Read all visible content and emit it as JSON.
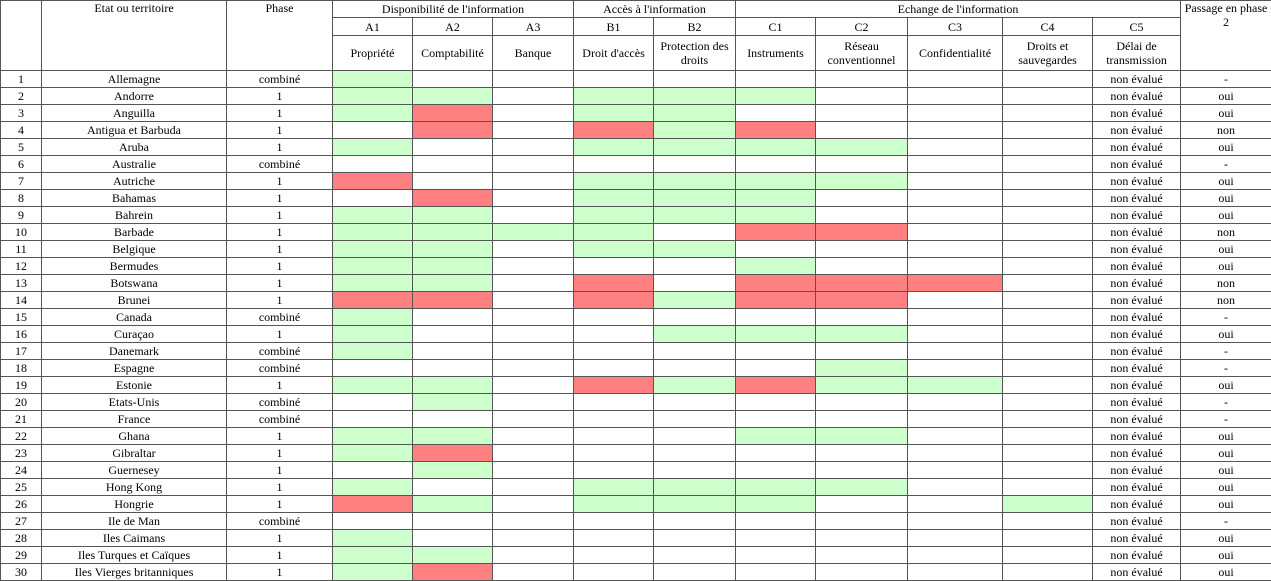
{
  "header": {
    "state": "Etat ou territoire",
    "phase": "Phase",
    "passage": "Passage en phase 2",
    "groups": [
      {
        "label": "Disponibilité de l'information",
        "span": 3
      },
      {
        "label": "Accès à l'information",
        "span": 2
      },
      {
        "label": "Echange de l'information",
        "span": 5
      }
    ],
    "columns": [
      {
        "code": "A1",
        "label": "Propriété"
      },
      {
        "code": "A2",
        "label": "Comptabilité"
      },
      {
        "code": "A3",
        "label": "Banque"
      },
      {
        "code": "B1",
        "label": "Droit d'accès"
      },
      {
        "code": "B2",
        "label": "Protection des droits"
      },
      {
        "code": "C1",
        "label": "Instruments"
      },
      {
        "code": "C2",
        "label": "Réseau conventionnel"
      },
      {
        "code": "C3",
        "label": "Confidentialité"
      },
      {
        "code": "C4",
        "label": "Droits et sauvegardes"
      },
      {
        "code": "C5",
        "label": "Délai de transmission"
      }
    ]
  },
  "table": {
    "rows": [
      {
        "n": 1,
        "name": "Allemagne",
        "phase": "combiné",
        "cells": [
          "#ccffcc",
          null,
          null,
          null,
          null,
          null,
          null,
          null,
          null
        ],
        "c5": "non évalué",
        "passage": "-"
      },
      {
        "n": 2,
        "name": "Andorre",
        "phase": "1",
        "cells": [
          "#ccffcc",
          "#ccffcc",
          null,
          "#ccffcc",
          "#ccffcc",
          "#ccffcc",
          null,
          null,
          null
        ],
        "c5": "non évalué",
        "passage": "oui"
      },
      {
        "n": 3,
        "name": "Anguilla",
        "phase": "1",
        "cells": [
          "#ccffcc",
          "#ff8080",
          null,
          "#ccffcc",
          "#ccffcc",
          null,
          null,
          null,
          null
        ],
        "c5": "non évalué",
        "passage": "oui"
      },
      {
        "n": 4,
        "name": "Antigua et Barbuda",
        "phase": "1",
        "cells": [
          null,
          "#ff8080",
          null,
          "#ff8080",
          "#ccffcc",
          "#ff8080",
          null,
          null,
          null
        ],
        "c5": "non évalué",
        "passage": "non"
      },
      {
        "n": 5,
        "name": "Aruba",
        "phase": "1",
        "cells": [
          "#ccffcc",
          null,
          null,
          "#ccffcc",
          "#ccffcc",
          "#ccffcc",
          "#ccffcc",
          null,
          null
        ],
        "c5": "non évalué",
        "passage": "oui"
      },
      {
        "n": 6,
        "name": "Australie",
        "phase": "combiné",
        "cells": [
          null,
          null,
          null,
          null,
          null,
          null,
          null,
          null,
          null
        ],
        "c5": "non évalué",
        "passage": "-"
      },
      {
        "n": 7,
        "name": "Autriche",
        "phase": "1",
        "cells": [
          "#ff8080",
          null,
          null,
          "#ccffcc",
          "#ccffcc",
          "#ccffcc",
          "#ccffcc",
          null,
          null
        ],
        "c5": "non évalué",
        "passage": "oui"
      },
      {
        "n": 8,
        "name": "Bahamas",
        "phase": "1",
        "cells": [
          null,
          "#ff8080",
          null,
          "#ccffcc",
          "#ccffcc",
          "#ccffcc",
          null,
          null,
          null
        ],
        "c5": "non évalué",
        "passage": "oui"
      },
      {
        "n": 9,
        "name": "Bahrein",
        "phase": "1",
        "cells": [
          "#ccffcc",
          "#ccffcc",
          null,
          "#ccffcc",
          "#ccffcc",
          "#ccffcc",
          null,
          null,
          null
        ],
        "c5": "non évalué",
        "passage": "oui"
      },
      {
        "n": 10,
        "name": "Barbade",
        "phase": "1",
        "cells": [
          "#ccffcc",
          "#ccffcc",
          "#ccffcc",
          "#ccffcc",
          null,
          "#ff8080",
          "#ff8080",
          null,
          null
        ],
        "c5": "non évalué",
        "passage": "non"
      },
      {
        "n": 11,
        "name": "Belgique",
        "phase": "1",
        "cells": [
          "#ccffcc",
          "#ccffcc",
          null,
          "#ccffcc",
          "#ccffcc",
          null,
          null,
          null,
          null
        ],
        "c5": "non évalué",
        "passage": "oui"
      },
      {
        "n": 12,
        "name": "Bermudes",
        "phase": "1",
        "cells": [
          "#ccffcc",
          "#ccffcc",
          null,
          null,
          null,
          "#ccffcc",
          null,
          null,
          null
        ],
        "c5": "non évalué",
        "passage": "oui"
      },
      {
        "n": 13,
        "name": "Botswana",
        "phase": "1",
        "cells": [
          "#ccffcc",
          "#ccffcc",
          null,
          "#ff8080",
          null,
          "#ff8080",
          "#ff8080",
          "#ff8080",
          null
        ],
        "c5": "non évalué",
        "passage": "non"
      },
      {
        "n": 14,
        "name": "Brunei",
        "phase": "1",
        "cells": [
          "#ff8080",
          "#ff8080",
          null,
          "#ff8080",
          "#ccffcc",
          "#ff8080",
          "#ff8080",
          null,
          null
        ],
        "c5": "non évalué",
        "passage": "non"
      },
      {
        "n": 15,
        "name": "Canada",
        "phase": "combiné",
        "cells": [
          "#ccffcc",
          null,
          null,
          null,
          null,
          null,
          null,
          null,
          null
        ],
        "c5": "non évalué",
        "passage": "-"
      },
      {
        "n": 16,
        "name": "Curaçao",
        "phase": "1",
        "cells": [
          "#ccffcc",
          null,
          null,
          null,
          "#ccffcc",
          "#ccffcc",
          "#ccffcc",
          null,
          null
        ],
        "c5": "non évalué",
        "passage": "oui"
      },
      {
        "n": 17,
        "name": "Danemark",
        "phase": "combiné",
        "cells": [
          "#ccffcc",
          null,
          null,
          null,
          null,
          null,
          null,
          null,
          null
        ],
        "c5": "non évalué",
        "passage": "-"
      },
      {
        "n": 18,
        "name": "Espagne",
        "phase": "combiné",
        "cells": [
          null,
          null,
          null,
          null,
          null,
          null,
          "#ccffcc",
          null,
          null
        ],
        "c5": "non évalué",
        "passage": "-"
      },
      {
        "n": 19,
        "name": "Estonie",
        "phase": "1",
        "cells": [
          "#ccffcc",
          "#ccffcc",
          null,
          "#ff8080",
          "#ccffcc",
          "#ff8080",
          "#ccffcc",
          "#ccffcc",
          null
        ],
        "c5": "non évalué",
        "passage": "oui"
      },
      {
        "n": 20,
        "name": "Etats-Unis",
        "phase": "combiné",
        "cells": [
          null,
          "#ccffcc",
          null,
          null,
          null,
          null,
          null,
          null,
          null
        ],
        "c5": "non évalué",
        "passage": "-"
      },
      {
        "n": 21,
        "name": "France",
        "phase": "combiné",
        "cells": [
          null,
          null,
          null,
          null,
          null,
          null,
          null,
          null,
          null
        ],
        "c5": "non évalué",
        "passage": "-"
      },
      {
        "n": 22,
        "name": "Ghana",
        "phase": "1",
        "cells": [
          "#ccffcc",
          "#ccffcc",
          null,
          null,
          null,
          "#ccffcc",
          "#ccffcc",
          null,
          null
        ],
        "c5": "non évalué",
        "passage": "oui"
      },
      {
        "n": 23,
        "name": "Gibraltar",
        "phase": "1",
        "cells": [
          "#ccffcc",
          "#ff8080",
          null,
          null,
          null,
          null,
          null,
          null,
          null
        ],
        "c5": "non évalué",
        "passage": "oui"
      },
      {
        "n": 24,
        "name": "Guernesey",
        "phase": "1",
        "cells": [
          null,
          "#ccffcc",
          null,
          null,
          null,
          null,
          null,
          null,
          null
        ],
        "c5": "non évalué",
        "passage": "oui"
      },
      {
        "n": 25,
        "name": "Hong Kong",
        "phase": "1",
        "cells": [
          "#ccffcc",
          null,
          null,
          "#ccffcc",
          "#ccffcc",
          "#ccffcc",
          "#ccffcc",
          null,
          null
        ],
        "c5": "non évalué",
        "passage": "oui"
      },
      {
        "n": 26,
        "name": "Hongrie",
        "phase": "1",
        "cells": [
          "#ff8080",
          "#ccffcc",
          null,
          "#ccffcc",
          "#ccffcc",
          "#ccffcc",
          null,
          null,
          "#ccffcc"
        ],
        "c5": "non évalué",
        "passage": "oui"
      },
      {
        "n": 27,
        "name": "Ile de Man",
        "phase": "combiné",
        "cells": [
          null,
          null,
          null,
          null,
          null,
          null,
          null,
          null,
          null
        ],
        "c5": "non évalué",
        "passage": "-"
      },
      {
        "n": 28,
        "name": "Iles Caimans",
        "phase": "1",
        "cells": [
          "#ccffcc",
          null,
          null,
          null,
          null,
          null,
          null,
          null,
          null
        ],
        "c5": "non évalué",
        "passage": "oui"
      },
      {
        "n": 29,
        "name": "Iles Turques et Caïques",
        "phase": "1",
        "cells": [
          "#ccffcc",
          "#ccffcc",
          null,
          null,
          null,
          null,
          null,
          null,
          null
        ],
        "c5": "non évalué",
        "passage": "oui"
      },
      {
        "n": 30,
        "name": "Iles Vierges britanniques",
        "phase": "1",
        "cells": [
          "#ccffcc",
          "#ff8080",
          null,
          null,
          null,
          null,
          null,
          null,
          null
        ],
        "c5": "non évalué",
        "passage": "oui"
      }
    ]
  }
}
